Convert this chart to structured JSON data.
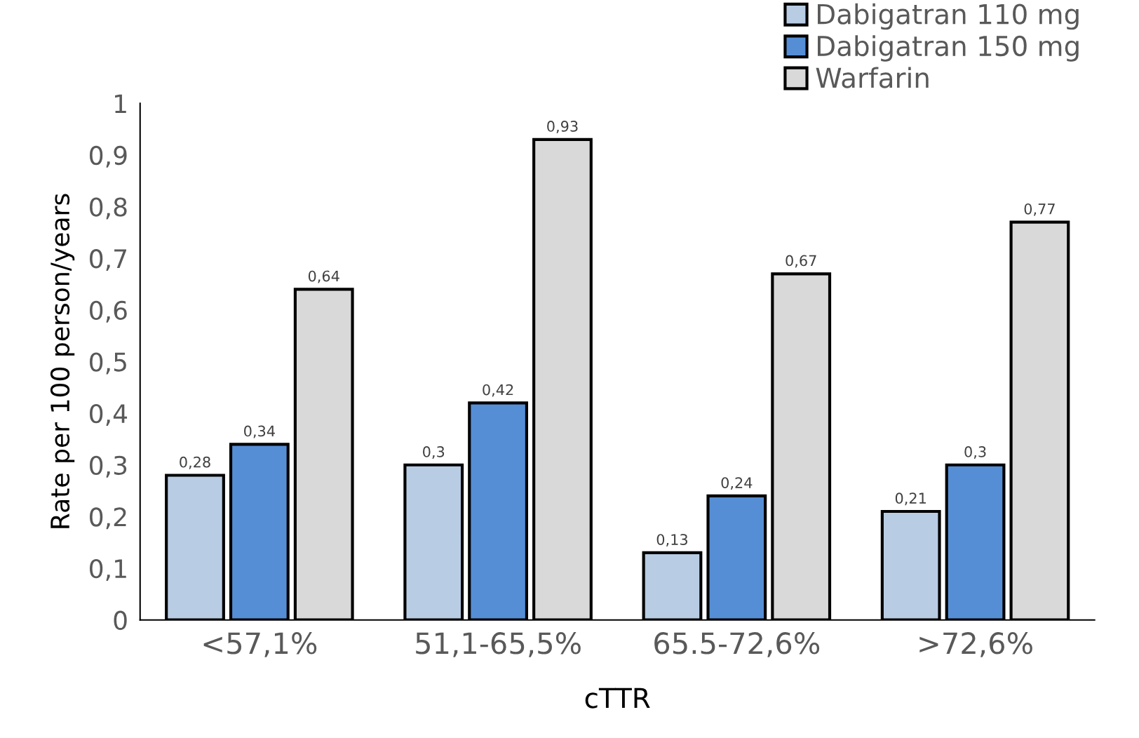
{
  "chart_data": {
    "type": "bar",
    "xlabel": "cTTR",
    "ylabel": "Rate per 100 person/years",
    "categories": [
      "<57,1%",
      "51,1-65,5%",
      "65.5-72,6%",
      ">72,6%"
    ],
    "series": [
      {
        "name": "Dabigatran 110 mg",
        "color": "#b8cce4",
        "values": [
          0.28,
          0.3,
          0.13,
          0.21
        ],
        "value_labels": [
          "0,28",
          "0,3",
          "0,13",
          "0,21"
        ]
      },
      {
        "name": "Dabigatran 150 mg",
        "color": "#558ed5",
        "values": [
          0.34,
          0.42,
          0.24,
          0.3
        ],
        "value_labels": [
          "0,34",
          "0,42",
          "0,24",
          "0,3"
        ]
      },
      {
        "name": "Warfarin",
        "color": "#d9d9d9",
        "values": [
          0.64,
          0.93,
          0.67,
          0.77
        ],
        "value_labels": [
          "0,64",
          "0,93",
          "0,67",
          "0,77"
        ]
      }
    ],
    "ylim": [
      0,
      1
    ],
    "yticks": [
      0,
      {
        "value": 0.1,
        "label": "0,1"
      },
      {
        "value": 0.2,
        "label": "0,2"
      },
      {
        "value": 0.3,
        "label": "0,3"
      },
      {
        "value": 0.4,
        "label": "0,4"
      },
      {
        "value": 0.5,
        "label": "0,5"
      },
      {
        "value": 0.6,
        "label": "0,6"
      },
      {
        "value": 0.7,
        "label": "0,7"
      },
      {
        "value": 0.8,
        "label": "0,8"
      },
      {
        "value": 0.9,
        "label": "0,9"
      },
      1
    ],
    "grid": false,
    "legend": "top right"
  }
}
